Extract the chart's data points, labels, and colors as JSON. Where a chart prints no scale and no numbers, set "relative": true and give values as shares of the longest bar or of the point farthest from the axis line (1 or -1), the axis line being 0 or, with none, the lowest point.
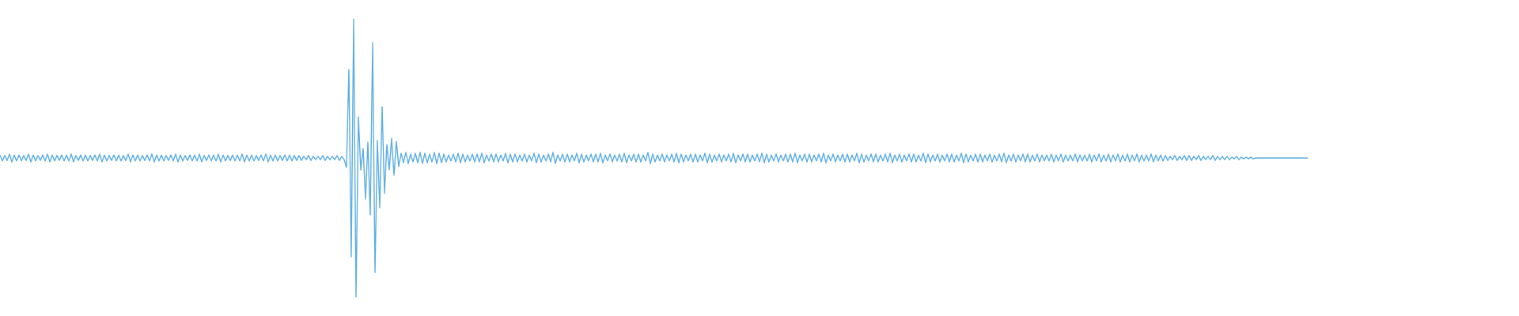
{
  "chart_data": {
    "type": "line",
    "relative": true,
    "tick_labels": false,
    "marker": "none",
    "categories": [
      null,
      null,
      null,
      null,
      null,
      null,
      null,
      null,
      null,
      null,
      null,
      null,
      null,
      null,
      null,
      null,
      null,
      null,
      null,
      null,
      null,
      null,
      null,
      null,
      null,
      null,
      null,
      null,
      null,
      null,
      null,
      null,
      null,
      null,
      null,
      null,
      null,
      null,
      null,
      null,
      null,
      null,
      null,
      null,
      null,
      null,
      null,
      null,
      null,
      null,
      null,
      null,
      null,
      null,
      null,
      null,
      null,
      null,
      null,
      null,
      null,
      null,
      null,
      null,
      null,
      null,
      null,
      null,
      null,
      null,
      null,
      null,
      null,
      null,
      null,
      null,
      null,
      null,
      null,
      null,
      null,
      null,
      null,
      null,
      null,
      null,
      null,
      null,
      null,
      null,
      null,
      null,
      null,
      null,
      null,
      null,
      null,
      null,
      null,
      null,
      null,
      null,
      null,
      null,
      null,
      null,
      null,
      null,
      null,
      null,
      null,
      null,
      null,
      null,
      null,
      null,
      null,
      null,
      null,
      null,
      null,
      null,
      null,
      null,
      null,
      null,
      null,
      null,
      null,
      null,
      null,
      null,
      null,
      null,
      null,
      null,
      null,
      null,
      null,
      null,
      null,
      null,
      null,
      null,
      null,
      null,
      null,
      null,
      null,
      null,
      null,
      null,
      null,
      null,
      null,
      null,
      null,
      null,
      null,
      null,
      null,
      null,
      null,
      null,
      null,
      null,
      null,
      null,
      null,
      null,
      null,
      null,
      null,
      null,
      null,
      null,
      null,
      null,
      null,
      null,
      null,
      null,
      null,
      null,
      null,
      null,
      null,
      null,
      null,
      null,
      null,
      null,
      null,
      null,
      null,
      null,
      null,
      null,
      null,
      null,
      null,
      null,
      null,
      null,
      null,
      null,
      null,
      null,
      null,
      null,
      null,
      null,
      null,
      null,
      null,
      null,
      null,
      null,
      null,
      null,
      null,
      null,
      null,
      null,
      null,
      null,
      null,
      null,
      null,
      null,
      null,
      null,
      null,
      null,
      null,
      null,
      null,
      null,
      null,
      null,
      null,
      null,
      null,
      null,
      null,
      null,
      null,
      null,
      null,
      null,
      null,
      null,
      null,
      null,
      null,
      null,
      null,
      null,
      null,
      null,
      null,
      null,
      null,
      null,
      null,
      null,
      null,
      null,
      null,
      null,
      null,
      null,
      null,
      null,
      null,
      null,
      null,
      null,
      null,
      null,
      null,
      null,
      null,
      null,
      null,
      null,
      null,
      null,
      null,
      null,
      null,
      null,
      null,
      null,
      null,
      null,
      null,
      null,
      null,
      null,
      null,
      null,
      null,
      null,
      null,
      null,
      null,
      null,
      null,
      null,
      null,
      null,
      null,
      null,
      null,
      null,
      null,
      null,
      null,
      null,
      null,
      null,
      null,
      null,
      null,
      null,
      null,
      null,
      null,
      null,
      null,
      null,
      null,
      null,
      null,
      null,
      null,
      null,
      null,
      null,
      null,
      null,
      null,
      null,
      null,
      null,
      null,
      null,
      null,
      null,
      null,
      null,
      null,
      null,
      null,
      null,
      null,
      null,
      null,
      null,
      null,
      null,
      null,
      null,
      null,
      null,
      null,
      null,
      null,
      null,
      null,
      null,
      null,
      null,
      null,
      null,
      null,
      null,
      null,
      null,
      null,
      null,
      null,
      null,
      null,
      null,
      null,
      null,
      null,
      null,
      null,
      null,
      null,
      null,
      null,
      null,
      null,
      null,
      null,
      null,
      null,
      null,
      null,
      null,
      null,
      null,
      null,
      null,
      null,
      null,
      null,
      null,
      null,
      null,
      null,
      null,
      null,
      null,
      null,
      null,
      null,
      null,
      null,
      null,
      null,
      null,
      null,
      null,
      null,
      null,
      null,
      null,
      null,
      null,
      null,
      null,
      null,
      null,
      null,
      null,
      null,
      null,
      null,
      null,
      null,
      null,
      null,
      null,
      null,
      null,
      null,
      null,
      null,
      null,
      null,
      null,
      null,
      null,
      null,
      null,
      null,
      null,
      null,
      null,
      null,
      null,
      null,
      null,
      null,
      null,
      null,
      null,
      null,
      null,
      null,
      null,
      null,
      null,
      null,
      null,
      null,
      null,
      null,
      null,
      null,
      null,
      null,
      null,
      null,
      null,
      null,
      null,
      null,
      null,
      null,
      null,
      null,
      null,
      null,
      null,
      null,
      null,
      null,
      null,
      null,
      null,
      null,
      null,
      null,
      null,
      null,
      null,
      null,
      null,
      null,
      null,
      null,
      null,
      null,
      null,
      null,
      null,
      null,
      null,
      null,
      null,
      null,
      null,
      null,
      null,
      null,
      null,
      null,
      null,
      null,
      null,
      null,
      null,
      null,
      null,
      null,
      null,
      null,
      null,
      null,
      null,
      null,
      null,
      null,
      null,
      null,
      null
    ],
    "series": [
      {
        "color": "#5dade2",
        "values": [
          0.511,
          0.489,
          0.509,
          0.491,
          0.514,
          0.486,
          0.511,
          0.489,
          0.511,
          0.489,
          0.509,
          0.491,
          0.514,
          0.486,
          0.511,
          0.489,
          0.509,
          0.491,
          0.511,
          0.489,
          0.514,
          0.486,
          0.511,
          0.489,
          0.509,
          0.491,
          0.511,
          0.489,
          0.511,
          0.489,
          0.514,
          0.486,
          0.509,
          0.491,
          0.511,
          0.489,
          0.511,
          0.489,
          0.509,
          0.491,
          0.511,
          0.489,
          0.514,
          0.486,
          0.511,
          0.489,
          0.509,
          0.491,
          0.511,
          0.489,
          0.511,
          0.489,
          0.509,
          0.491,
          0.514,
          0.486,
          0.511,
          0.489,
          0.511,
          0.489,
          0.509,
          0.491,
          0.511,
          0.489,
          0.514,
          0.486,
          0.511,
          0.489,
          0.511,
          0.489,
          0.509,
          0.491,
          0.511,
          0.489,
          0.514,
          0.486,
          0.511,
          0.489,
          0.509,
          0.491,
          0.511,
          0.489,
          0.511,
          0.489,
          0.514,
          0.486,
          0.509,
          0.491,
          0.511,
          0.489,
          0.511,
          0.489,
          0.514,
          0.486,
          0.511,
          0.489,
          0.509,
          0.491,
          0.511,
          0.489,
          0.511,
          0.489,
          0.514,
          0.486,
          0.511,
          0.489,
          0.511,
          0.489,
          0.509,
          0.491,
          0.511,
          0.489,
          0.514,
          0.486,
          0.511,
          0.489,
          0.511,
          0.489,
          0.509,
          0.491,
          0.511,
          0.489,
          0.511,
          0.489,
          0.509,
          0.491,
          0.509,
          0.491,
          0.506,
          0.494,
          0.509,
          0.491,
          0.506,
          0.494,
          0.506,
          0.494,
          0.509,
          0.491,
          0.506,
          0.494,
          0.506,
          0.494,
          0.509,
          0.491,
          0.506,
          0.494,
          0.466,
          0.818,
          0.145,
          1,
          0,
          0.648,
          0.457,
          0.534,
          0.352,
          0.557,
          0.295,
          0.915,
          0.088,
          0.563,
          0.321,
          0.685,
          0.372,
          0.548,
          0.457,
          0.571,
          0.438,
          0.56,
          0.469,
          0.517,
          0.483,
          0.52,
          0.48,
          0.514,
          0.486,
          0.517,
          0.483,
          0.52,
          0.48,
          0.517,
          0.483,
          0.514,
          0.486,
          0.52,
          0.48,
          0.517,
          0.483,
          0.514,
          0.486,
          0.511,
          0.489,
          0.514,
          0.486,
          0.517,
          0.483,
          0.514,
          0.486,
          0.511,
          0.489,
          0.514,
          0.486,
          0.514,
          0.486,
          0.517,
          0.483,
          0.511,
          0.489,
          0.514,
          0.486,
          0.514,
          0.486,
          0.511,
          0.489,
          0.517,
          0.483,
          0.514,
          0.486,
          0.514,
          0.486,
          0.511,
          0.489,
          0.514,
          0.486,
          0.511,
          0.489,
          0.517,
          0.483,
          0.514,
          0.486,
          0.511,
          0.489,
          0.514,
          0.486,
          0.52,
          0.48,
          0.511,
          0.489,
          0.514,
          0.486,
          0.514,
          0.486,
          0.511,
          0.489,
          0.517,
          0.483,
          0.514,
          0.486,
          0.511,
          0.489,
          0.514,
          0.486,
          0.514,
          0.486,
          0.517,
          0.483,
          0.511,
          0.489,
          0.514,
          0.486,
          0.511,
          0.489,
          0.514,
          0.486,
          0.517,
          0.483,
          0.511,
          0.489,
          0.514,
          0.486,
          0.514,
          0.486,
          0.511,
          0.489,
          0.52,
          0.48,
          0.514,
          0.486,
          0.511,
          0.489,
          0.514,
          0.486,
          0.511,
          0.489,
          0.514,
          0.486,
          0.517,
          0.483,
          0.514,
          0.486,
          0.511,
          0.489,
          0.514,
          0.486,
          0.514,
          0.486,
          0.511,
          0.489,
          0.517,
          0.483,
          0.514,
          0.486,
          0.511,
          0.489,
          0.514,
          0.486,
          0.511,
          0.489,
          0.514,
          0.486,
          0.517,
          0.483,
          0.511,
          0.489,
          0.514,
          0.486,
          0.514,
          0.486,
          0.511,
          0.489,
          0.514,
          0.486,
          0.517,
          0.483,
          0.514,
          0.486,
          0.511,
          0.489,
          0.514,
          0.486,
          0.511,
          0.489,
          0.514,
          0.486,
          0.514,
          0.486,
          0.517,
          0.483,
          0.511,
          0.489,
          0.514,
          0.486,
          0.514,
          0.486,
          0.511,
          0.489,
          0.514,
          0.486,
          0.517,
          0.483,
          0.511,
          0.489,
          0.514,
          0.486,
          0.511,
          0.489,
          0.514,
          0.486,
          0.514,
          0.486,
          0.511,
          0.489,
          0.517,
          0.483,
          0.514,
          0.486,
          0.511,
          0.489,
          0.514,
          0.486,
          0.514,
          0.486,
          0.511,
          0.489,
          0.514,
          0.486,
          0.517,
          0.483,
          0.511,
          0.489,
          0.514,
          0.486,
          0.511,
          0.489,
          0.514,
          0.486,
          0.514,
          0.486,
          0.511,
          0.489,
          0.517,
          0.483,
          0.514,
          0.486,
          0.511,
          0.489,
          0.514,
          0.486,
          0.511,
          0.489,
          0.514,
          0.486,
          0.514,
          0.486,
          0.511,
          0.489,
          0.517,
          0.483,
          0.514,
          0.486,
          0.511,
          0.489,
          0.514,
          0.486,
          0.514,
          0.486,
          0.511,
          0.489,
          0.514,
          0.486,
          0.511,
          0.489,
          0.514,
          0.486,
          0.517,
          0.483,
          0.511,
          0.489,
          0.514,
          0.486,
          0.511,
          0.489,
          0.514,
          0.486,
          0.514,
          0.486,
          0.511,
          0.489,
          0.514,
          0.486,
          0.511,
          0.489,
          0.511,
          0.489,
          0.514,
          0.486,
          0.511,
          0.489,
          0.514,
          0.486,
          0.511,
          0.489,
          0.511,
          0.489,
          0.514,
          0.486,
          0.511,
          0.489,
          0.511,
          0.489,
          0.514,
          0.486,
          0.511,
          0.489,
          0.514,
          0.486,
          0.511,
          0.489,
          0.514,
          0.486,
          0.511,
          0.489,
          0.514,
          0.486,
          0.511,
          0.489,
          0.514,
          0.486,
          0.511,
          0.489,
          0.514,
          0.486,
          0.511,
          0.489,
          0.511,
          0.489,
          0.514,
          0.486,
          0.511,
          0.489,
          0.511,
          0.489,
          0.509,
          0.491,
          0.506,
          0.494,
          0.509,
          0.491,
          0.506,
          0.494,
          0.509,
          0.491,
          0.509,
          0.491,
          0.506,
          0.494,
          0.509,
          0.491,
          0.506,
          0.494,
          0.506,
          0.494,
          0.509,
          0.491,
          0.506,
          0.494,
          0.506,
          0.494,
          0.506,
          0.494,
          0.503,
          0.497,
          0.506,
          0.494,
          0.503,
          0.497,
          0.503,
          0.497,
          0.503,
          0.497,
          0.5,
          0.5,
          0.5,
          0.5,
          0.5,
          0.5,
          0.5,
          0.5,
          0.5,
          0.5,
          0.5,
          0.5,
          0.5,
          0.5,
          0.5,
          0.5,
          0.5,
          0.5,
          0.5,
          0.5,
          0.5,
          0.5,
          0.5
        ]
      }
    ]
  }
}
